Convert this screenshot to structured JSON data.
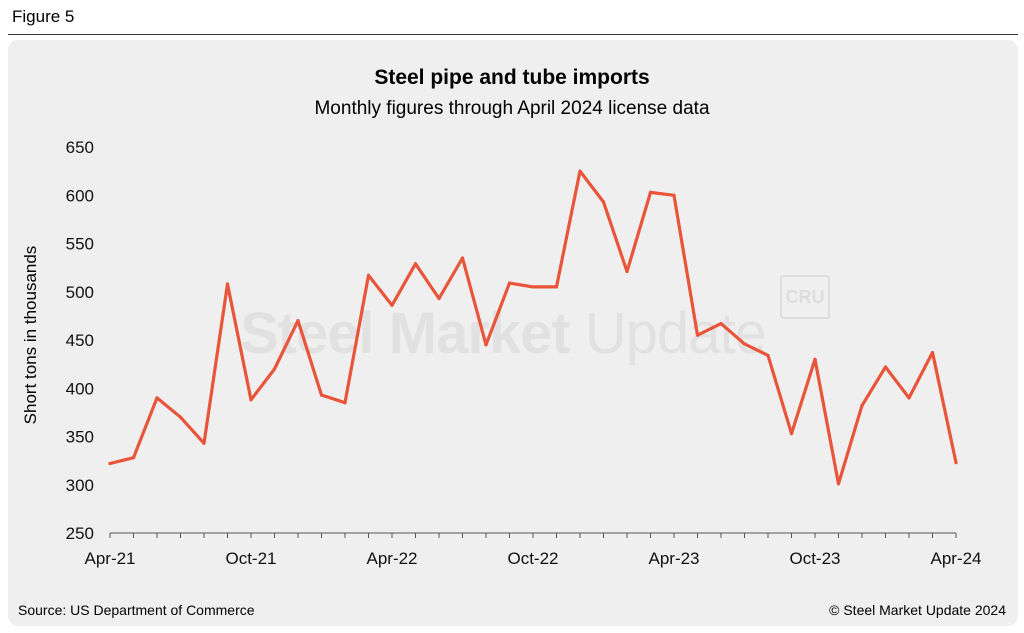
{
  "figure_label": "Figure 5",
  "source": "Source: US Department of Commerce",
  "copyright": "© Steel Market Update 2024",
  "watermark": {
    "bold": "Steel Market",
    "light": "Update",
    "badge": "CRU"
  },
  "colors": {
    "line": "#e8553a",
    "panel": "#efefef",
    "axis": "#555555"
  },
  "chart_data": {
    "type": "line",
    "title": "Steel pipe and tube imports",
    "subtitle": "Monthly figures through April 2024 license data",
    "ylabel": "Short tons in thousands",
    "xlabel": "",
    "ylim": [
      250,
      650
    ],
    "yticks": [
      250,
      300,
      350,
      400,
      450,
      500,
      550,
      600,
      650
    ],
    "grid": false,
    "x": [
      "Apr-21",
      "May-21",
      "Jun-21",
      "Jul-21",
      "Aug-21",
      "Sep-21",
      "Oct-21",
      "Nov-21",
      "Dec-21",
      "Jan-22",
      "Feb-22",
      "Mar-22",
      "Apr-22",
      "May-22",
      "Jun-22",
      "Jul-22",
      "Aug-22",
      "Sep-22",
      "Oct-22",
      "Nov-22",
      "Dec-22",
      "Jan-23",
      "Feb-23",
      "Mar-23",
      "Apr-23",
      "May-23",
      "Jun-23",
      "Jul-23",
      "Aug-23",
      "Sep-23",
      "Oct-23",
      "Nov-23",
      "Dec-23",
      "Jan-24",
      "Feb-24",
      "Mar-24",
      "Apr-24"
    ],
    "xtick_labels": [
      "Apr-21",
      "Oct-21",
      "Apr-22",
      "Oct-22",
      "Apr-23",
      "Oct-23",
      "Apr-24"
    ],
    "series": [
      {
        "values": [
          322,
          328,
          390,
          370,
          343,
          508,
          388,
          420,
          470,
          393,
          385,
          517,
          486,
          529,
          493,
          535,
          445,
          509,
          505,
          505,
          625,
          593,
          521,
          603,
          600,
          455,
          467,
          446,
          434,
          353,
          430,
          301,
          382,
          422,
          390,
          437,
          323
        ]
      }
    ]
  }
}
